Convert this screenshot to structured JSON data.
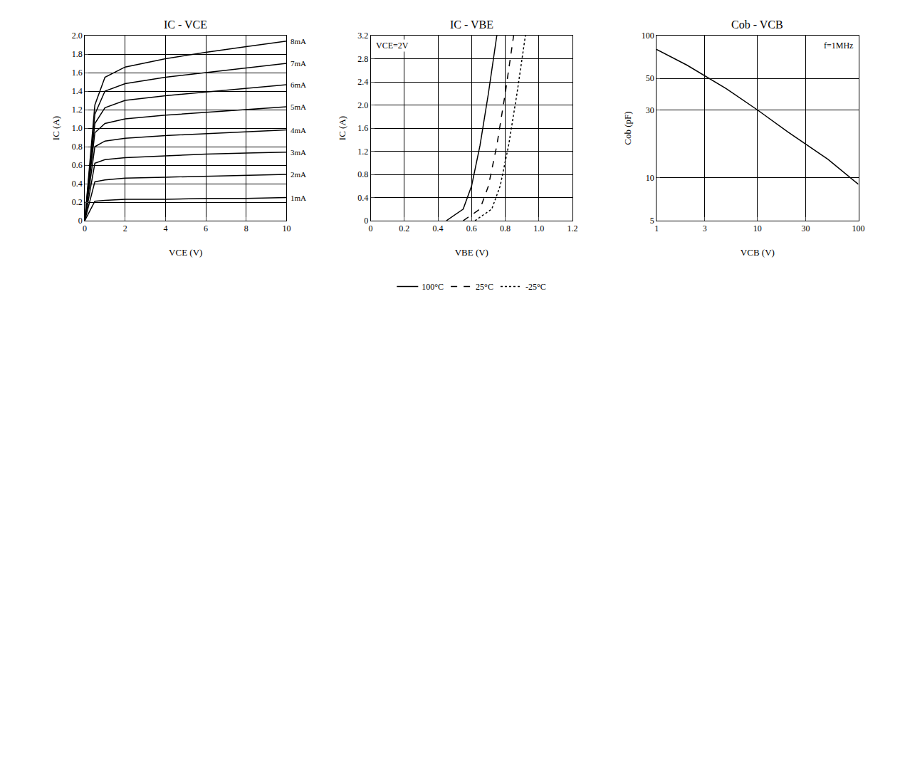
{
  "chart_data": [
    {
      "type": "line",
      "title": "IC - VCE",
      "x_label": "VCE (V)",
      "y_label": "IC (A)",
      "grid": true,
      "data_labels": true,
      "xlim": [
        0,
        10
      ],
      "xticks": [
        0,
        2,
        4,
        6,
        8,
        10
      ],
      "ylim": [
        0,
        2
      ],
      "yticks": [
        0,
        {
          "value": 0.2,
          "label": "0.2"
        },
        {
          "value": 0.4,
          "label": "0.4"
        },
        {
          "value": 0.6,
          "label": "0.6"
        },
        {
          "value": 0.8,
          "label": "0.8"
        },
        {
          "value": 1,
          "label": "1.0"
        },
        {
          "value": 1.2,
          "label": "1.2"
        },
        {
          "value": 1.4,
          "label": "1.4"
        },
        {
          "value": 1.6,
          "label": "1.6"
        },
        {
          "value": 1.8,
          "label": "1.8"
        },
        {
          "value": 2,
          "label": "2.0"
        }
      ],
      "x": [
        0,
        0.5,
        1,
        2,
        4,
        6,
        8,
        10
      ],
      "series": [
        {
          "name": "8mA",
          "color": "#000000",
          "values": [
            0,
            1.25,
            1.55,
            1.66,
            1.75,
            1.82,
            1.88,
            1.94
          ]
        },
        {
          "name": "7mA",
          "color": "#000000",
          "values": [
            0,
            1.15,
            1.4,
            1.48,
            1.55,
            1.6,
            1.65,
            1.7
          ]
        },
        {
          "name": "6mA",
          "color": "#000000",
          "values": [
            0,
            1.05,
            1.22,
            1.3,
            1.35,
            1.39,
            1.43,
            1.47
          ]
        },
        {
          "name": "5mA",
          "color": "#000000",
          "values": [
            0,
            0.95,
            1.05,
            1.1,
            1.14,
            1.17,
            1.2,
            1.23
          ]
        },
        {
          "name": "4mA",
          "color": "#000000",
          "values": [
            0,
            0.8,
            0.86,
            0.89,
            0.92,
            0.94,
            0.96,
            0.98
          ]
        },
        {
          "name": "3mA",
          "color": "#000000",
          "values": [
            0,
            0.62,
            0.66,
            0.68,
            0.7,
            0.72,
            0.73,
            0.74
          ]
        },
        {
          "name": "2mA",
          "color": "#000000",
          "values": [
            0,
            0.42,
            0.44,
            0.46,
            0.47,
            0.48,
            0.49,
            0.5
          ]
        },
        {
          "name": "1mA",
          "color": "#000000",
          "values": [
            0,
            0.21,
            0.22,
            0.23,
            0.23,
            0.24,
            0.24,
            0.25
          ]
        }
      ]
    },
    {
      "type": "line",
      "title": "IC - VBE",
      "x_label": "VBE (V)",
      "y_label": "IC (A)",
      "grid": true,
      "legend": "bottom",
      "annotations": [
        "VCE=2V"
      ],
      "xlim": [
        0,
        1.2
      ],
      "xticks": [
        0,
        0.2,
        0.4,
        0.6,
        0.8,
        {
          "value": 1,
          "label": "1.0"
        },
        1.2
      ],
      "ylim": [
        0,
        3.2
      ],
      "yticks": [
        0,
        0.4,
        0.8,
        1.2,
        1.6,
        {
          "value": 2,
          "label": "2.0"
        },
        2.4,
        2.8,
        3.2
      ],
      "series": [
        {
          "name": "100°C",
          "color": "#000000",
          "line_style": "solid",
          "x": [
            0.45,
            0.55,
            0.6,
            0.65,
            0.7,
            0.75
          ],
          "values": [
            0,
            0.2,
            0.6,
            1.3,
            2.2,
            3.2
          ]
        },
        {
          "name": "25°C",
          "color": "#000000",
          "line_style": "dash",
          "x": [
            0.55,
            0.65,
            0.7,
            0.75,
            0.8,
            0.85
          ],
          "values": [
            0,
            0.2,
            0.6,
            1.3,
            2.2,
            3.2
          ]
        },
        {
          "name": "-25°C",
          "color": "#000000",
          "line_style": "dot",
          "x": [
            0.62,
            0.72,
            0.77,
            0.82,
            0.87,
            0.92
          ],
          "values": [
            0,
            0.2,
            0.6,
            1.3,
            2.2,
            3.2
          ]
        }
      ]
    },
    {
      "type": "line",
      "title": "Cob - VCB",
      "x_label": "VCB (V)",
      "y_label": "Cob (pF)",
      "grid": true,
      "log": true,
      "annotations": [
        "f=1MHz"
      ],
      "xlim": [
        1,
        100
      ],
      "xticks": [
        1,
        3,
        10,
        30,
        100
      ],
      "ylim": [
        5,
        100
      ],
      "yticks": [
        5,
        10,
        30,
        50,
        100
      ],
      "x": [
        1,
        2,
        5,
        10,
        20,
        50,
        100
      ],
      "series": [
        {
          "name": "Cob",
          "color": "#000000",
          "values": [
            80,
            62,
            42,
            30,
            21,
            13.5,
            9
          ]
        }
      ]
    }
  ]
}
